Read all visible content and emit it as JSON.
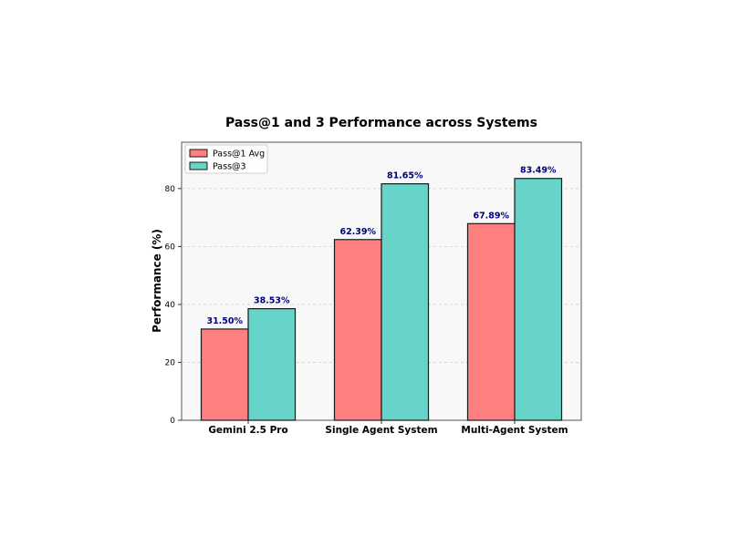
{
  "chart_data": {
    "type": "bar",
    "title": "Pass@1 and 3 Performance across Systems",
    "xlabel": "",
    "ylabel": "Performance (%)",
    "categories": [
      "Gemini 2.5 Pro",
      "Single Agent System",
      "Multi-Agent System"
    ],
    "series": [
      {
        "name": "Pass@1 Avg",
        "values": [
          31.5,
          62.39,
          67.89
        ],
        "labels": [
          "31.50%",
          "62.39%",
          "67.89%"
        ],
        "color": "#ff7f7f"
      },
      {
        "name": "Pass@3",
        "values": [
          38.53,
          81.65,
          83.49
        ],
        "labels": [
          "38.53%",
          "81.65%",
          "83.49%"
        ],
        "color": "#66d4c8"
      }
    ],
    "ylim": [
      0,
      96
    ],
    "yticks": [
      0,
      20,
      40,
      60,
      80
    ],
    "ytick_labels": [
      "0",
      "20",
      "40",
      "60",
      "80"
    ],
    "grid": true,
    "legend_position": "top-left",
    "colors": {
      "plot_background": "#f8f8f8",
      "data_label": "#00007a"
    }
  }
}
